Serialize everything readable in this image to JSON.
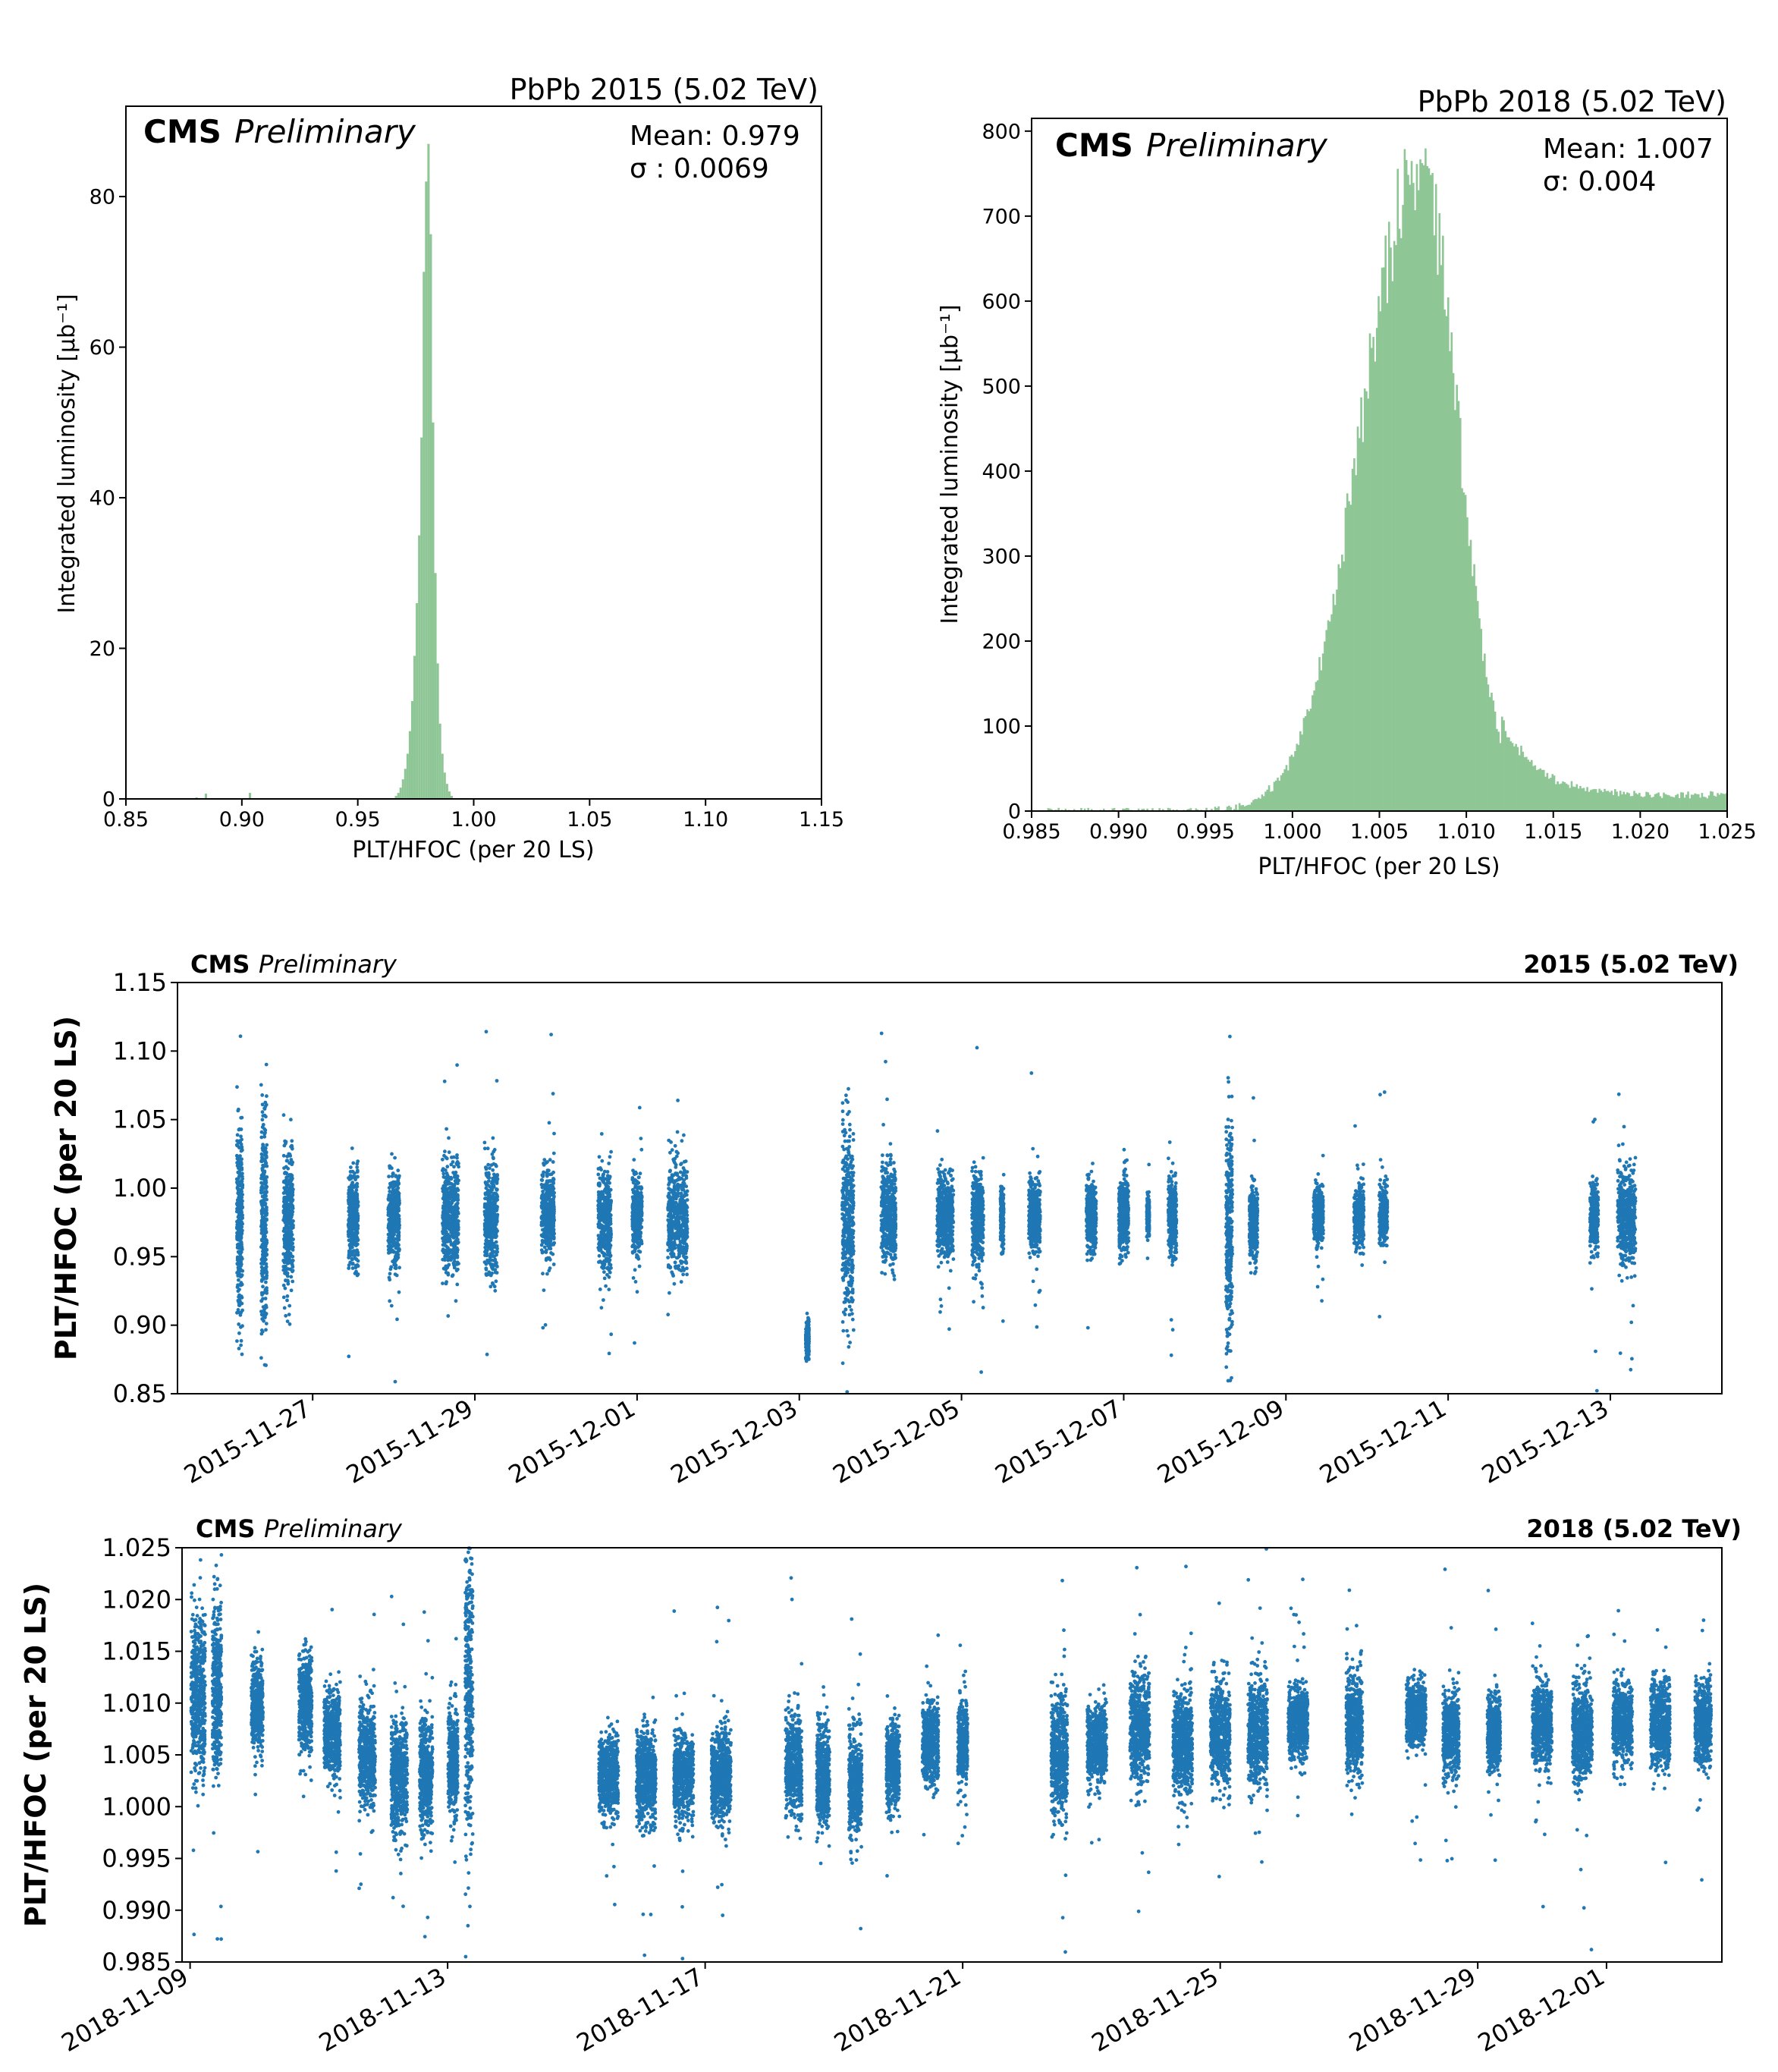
{
  "chart_data": [
    {
      "type": "bar",
      "panel": "histogram-2015",
      "title": "PbPb 2015 (5.02 TeV)",
      "label_bold": "CMS",
      "label_italic": "Preliminary",
      "stats": {
        "mean": "Mean: 0.979",
        "sigma": "σ : 0.0069"
      },
      "xlabel": "PLT/HFOC (per 20 LS)",
      "ylabel": "Integrated luminosity [μb⁻¹]",
      "xlim": [
        0.85,
        1.15
      ],
      "ylim": [
        0,
        92
      ],
      "xticks": [
        "0.85",
        "0.90",
        "0.95",
        "1.00",
        "1.05",
        "1.10",
        "1.15"
      ],
      "yticks": [
        "0",
        "20",
        "40",
        "60",
        "80"
      ],
      "bin_width": 0.001,
      "bins": [
        [
          0.88,
          0.2
        ],
        [
          0.884,
          0.7
        ],
        [
          0.903,
          0.8
        ],
        [
          0.966,
          0.4
        ],
        [
          0.967,
          0.8
        ],
        [
          0.968,
          1.5
        ],
        [
          0.969,
          2.6
        ],
        [
          0.97,
          4.0
        ],
        [
          0.971,
          6.0
        ],
        [
          0.972,
          9.0
        ],
        [
          0.973,
          13.0
        ],
        [
          0.974,
          19.0
        ],
        [
          0.975,
          26.0
        ],
        [
          0.976,
          35.0
        ],
        [
          0.977,
          48.0
        ],
        [
          0.978,
          70.0
        ],
        [
          0.979,
          82.0
        ],
        [
          0.98,
          87.0
        ],
        [
          0.981,
          75.0
        ],
        [
          0.982,
          50.0
        ],
        [
          0.983,
          30.0
        ],
        [
          0.984,
          18.0
        ],
        [
          0.985,
          10.0
        ],
        [
          0.986,
          6.0
        ],
        [
          0.987,
          3.5
        ],
        [
          0.988,
          2.0
        ],
        [
          0.989,
          1.0
        ],
        [
          0.99,
          0.4
        ]
      ],
      "color": "#8fc695"
    },
    {
      "type": "bar",
      "panel": "histogram-2018",
      "title": "PbPb 2018 (5.02 TeV)",
      "label_bold": "CMS",
      "label_italic": "Preliminary",
      "stats": {
        "mean": "Mean: 1.007",
        "sigma": "σ: 0.004"
      },
      "xlabel": "PLT/HFOC (per 20 LS)",
      "ylabel": "Integrated luminosity [μb⁻¹]",
      "xlim": [
        0.985,
        1.025
      ],
      "ylim": [
        0,
        815
      ],
      "xticks": [
        "0.985",
        "0.990",
        "0.995",
        "1.000",
        "1.005",
        "1.010",
        "1.015",
        "1.020",
        "1.025"
      ],
      "yticks": [
        "0",
        "100",
        "200",
        "300",
        "400",
        "500",
        "600",
        "700",
        "800"
      ],
      "peak": {
        "x": 1.0073,
        "y": 760
      },
      "sigma_left": 0.0033,
      "sigma_right": 0.0022,
      "tail_level": 18,
      "color": "#8fc695"
    },
    {
      "type": "scatter",
      "panel": "timeseries-2015",
      "label_bold": "CMS",
      "label_italic": "Preliminary",
      "energy_label": "2015 (5.02 TeV)",
      "ylabel": "PLT/HFOC (per 20 LS)",
      "xlim": [
        "2015-11-25T08:00",
        "2015-12-14T09:00"
      ],
      "ylim": [
        0.85,
        1.15
      ],
      "yticks": [
        "0.85",
        "0.90",
        "0.95",
        "1.00",
        "1.05",
        "1.10",
        "1.15"
      ],
      "xticks": [
        "2015-11-27",
        "2015-11-29",
        "2015-12-01",
        "2015-12-03",
        "2015-12-05",
        "2015-12-07",
        "2015-12-09",
        "2015-12-11",
        "2015-12-13"
      ],
      "color": "#1f77b4",
      "clusters": [
        {
          "t": "2015-11-26T02:24",
          "w": 0.07,
          "c": 0.975,
          "s": 0.035
        },
        {
          "t": "2015-11-26T09:36",
          "w": 0.07,
          "c": 0.975,
          "s": 0.04
        },
        {
          "t": "2015-11-26T16:48",
          "w": 0.12,
          "c": 0.975,
          "s": 0.025
        },
        {
          "t": "2015-11-27T12:00",
          "w": 0.12,
          "c": 0.978,
          "s": 0.017
        },
        {
          "t": "2015-11-28T00:00",
          "w": 0.14,
          "c": 0.978,
          "s": 0.017
        },
        {
          "t": "2015-11-28T16:48",
          "w": 0.2,
          "c": 0.978,
          "s": 0.02
        },
        {
          "t": "2015-11-29T04:48",
          "w": 0.16,
          "c": 0.978,
          "s": 0.02
        },
        {
          "t": "2015-11-29T21:36",
          "w": 0.16,
          "c": 0.98,
          "s": 0.017
        },
        {
          "t": "2015-11-30T14:24",
          "w": 0.16,
          "c": 0.978,
          "s": 0.018
        },
        {
          "t": "2015-12-01T00:00",
          "w": 0.12,
          "c": 0.98,
          "s": 0.013
        },
        {
          "t": "2015-12-01T12:00",
          "w": 0.24,
          "c": 0.978,
          "s": 0.02
        },
        {
          "t": "2015-12-03T02:24",
          "w": 0.04,
          "c": 0.89,
          "s": 0.006
        },
        {
          "t": "2015-12-03T14:24",
          "w": 0.14,
          "c": 0.975,
          "s": 0.035
        },
        {
          "t": "2015-12-04T02:24",
          "w": 0.18,
          "c": 0.98,
          "s": 0.018
        },
        {
          "t": "2015-12-04T19:12",
          "w": 0.2,
          "c": 0.98,
          "s": 0.015
        },
        {
          "t": "2015-12-05T04:48",
          "w": 0.14,
          "c": 0.978,
          "s": 0.017
        },
        {
          "t": "2015-12-05T12:00",
          "w": 0.04,
          "c": 0.98,
          "s": 0.01
        },
        {
          "t": "2015-12-05T21:36",
          "w": 0.14,
          "c": 0.98,
          "s": 0.013
        },
        {
          "t": "2015-12-06T14:24",
          "w": 0.12,
          "c": 0.98,
          "s": 0.013
        },
        {
          "t": "2015-12-07T00:00",
          "w": 0.12,
          "c": 0.98,
          "s": 0.013
        },
        {
          "t": "2015-12-07T07:12",
          "w": 0.03,
          "c": 0.98,
          "s": 0.006
        },
        {
          "t": "2015-12-07T14:24",
          "w": 0.1,
          "c": 0.978,
          "s": 0.013
        },
        {
          "t": "2015-12-08T07:12",
          "w": 0.08,
          "c": 0.97,
          "s": 0.04
        },
        {
          "t": "2015-12-08T14:24",
          "w": 0.1,
          "c": 0.975,
          "s": 0.013
        },
        {
          "t": "2015-12-09T09:36",
          "w": 0.12,
          "c": 0.98,
          "s": 0.01
        },
        {
          "t": "2015-12-09T21:36",
          "w": 0.12,
          "c": 0.98,
          "s": 0.01
        },
        {
          "t": "2015-12-10T04:48",
          "w": 0.1,
          "c": 0.98,
          "s": 0.01
        },
        {
          "t": "2015-12-12T19:12",
          "w": 0.1,
          "c": 0.978,
          "s": 0.012
        },
        {
          "t": "2015-12-13T04:48",
          "w": 0.22,
          "c": 0.978,
          "s": 0.017
        }
      ]
    },
    {
      "type": "scatter",
      "panel": "timeseries-2018",
      "label_bold": "CMS",
      "label_italic": "Preliminary",
      "energy_label": "2018 (5.02 TeV)",
      "ylabel": "PLT/HFOC (per 20 LS)",
      "xlim": [
        "2018-11-08T21:00",
        "2018-12-02T19:00"
      ],
      "ylim": [
        0.985,
        1.025
      ],
      "yticks": [
        "0.985",
        "0.990",
        "0.995",
        "1.000",
        "1.005",
        "1.010",
        "1.015",
        "1.020",
        "1.025"
      ],
      "xticks": [
        "2018-11-09",
        "2018-11-13",
        "2018-11-17",
        "2018-11-21",
        "2018-11-25",
        "2018-11-29",
        "2018-12-01"
      ],
      "color": "#1f77b4",
      "clusters": [
        {
          "t": "2018-11-09T03:00",
          "w": 0.22,
          "c": 1.011,
          "s": 0.004
        },
        {
          "t": "2018-11-09T10:00",
          "w": 0.14,
          "c": 1.011,
          "s": 0.004
        },
        {
          "t": "2018-11-10T01:00",
          "w": 0.18,
          "c": 1.01,
          "s": 0.002
        },
        {
          "t": "2018-11-10T19:00",
          "w": 0.2,
          "c": 1.01,
          "s": 0.0022
        },
        {
          "t": "2018-11-11T05:00",
          "w": 0.25,
          "c": 1.007,
          "s": 0.002
        },
        {
          "t": "2018-11-11T18:00",
          "w": 0.25,
          "c": 1.005,
          "s": 0.0025
        },
        {
          "t": "2018-11-12T06:00",
          "w": 0.25,
          "c": 1.003,
          "s": 0.0028
        },
        {
          "t": "2018-11-12T16:00",
          "w": 0.2,
          "c": 1.003,
          "s": 0.0025
        },
        {
          "t": "2018-11-13T02:00",
          "w": 0.15,
          "c": 1.004,
          "s": 0.0025
        },
        {
          "t": "2018-11-13T08:00",
          "w": 0.12,
          "c": 1.012,
          "s": 0.008
        },
        {
          "t": "2018-11-15T12:00",
          "w": 0.3,
          "c": 1.003,
          "s": 0.002
        },
        {
          "t": "2018-11-16T02:00",
          "w": 0.3,
          "c": 1.003,
          "s": 0.0022
        },
        {
          "t": "2018-11-16T16:00",
          "w": 0.3,
          "c": 1.003,
          "s": 0.002
        },
        {
          "t": "2018-11-17T06:00",
          "w": 0.3,
          "c": 1.003,
          "s": 0.0022
        },
        {
          "t": "2018-11-18T09:00",
          "w": 0.25,
          "c": 1.004,
          "s": 0.0025
        },
        {
          "t": "2018-11-18T20:00",
          "w": 0.2,
          "c": 1.003,
          "s": 0.0025
        },
        {
          "t": "2018-11-19T08:00",
          "w": 0.2,
          "c": 1.002,
          "s": 0.0025
        },
        {
          "t": "2018-11-19T22:00",
          "w": 0.2,
          "c": 1.004,
          "s": 0.002
        },
        {
          "t": "2018-11-20T12:00",
          "w": 0.25,
          "c": 1.006,
          "s": 0.002
        },
        {
          "t": "2018-11-21T00:00",
          "w": 0.15,
          "c": 1.006,
          "s": 0.0018
        },
        {
          "t": "2018-11-22T12:00",
          "w": 0.25,
          "c": 1.005,
          "s": 0.003
        },
        {
          "t": "2018-11-23T02:00",
          "w": 0.3,
          "c": 1.006,
          "s": 0.0018
        },
        {
          "t": "2018-11-23T18:00",
          "w": 0.3,
          "c": 1.0075,
          "s": 0.0025
        },
        {
          "t": "2018-11-24T10:00",
          "w": 0.3,
          "c": 1.006,
          "s": 0.0025
        },
        {
          "t": "2018-11-25T00:00",
          "w": 0.3,
          "c": 1.007,
          "s": 0.0025
        },
        {
          "t": "2018-11-25T14:00",
          "w": 0.3,
          "c": 1.007,
          "s": 0.0025
        },
        {
          "t": "2018-11-26T05:00",
          "w": 0.3,
          "c": 1.008,
          "s": 0.0018
        },
        {
          "t": "2018-11-27T02:00",
          "w": 0.25,
          "c": 1.008,
          "s": 0.0025
        },
        {
          "t": "2018-11-28T01:00",
          "w": 0.3,
          "c": 1.009,
          "s": 0.0015
        },
        {
          "t": "2018-11-28T14:00",
          "w": 0.25,
          "c": 1.007,
          "s": 0.002
        },
        {
          "t": "2018-11-29T06:00",
          "w": 0.2,
          "c": 1.007,
          "s": 0.0018
        },
        {
          "t": "2018-11-30T00:00",
          "w": 0.3,
          "c": 1.008,
          "s": 0.002
        },
        {
          "t": "2018-11-30T15:00",
          "w": 0.3,
          "c": 1.007,
          "s": 0.0022
        },
        {
          "t": "2018-12-01T06:00",
          "w": 0.3,
          "c": 1.008,
          "s": 0.0018
        },
        {
          "t": "2018-12-01T20:00",
          "w": 0.3,
          "c": 1.008,
          "s": 0.002
        },
        {
          "t": "2018-12-02T12:00",
          "w": 0.25,
          "c": 1.008,
          "s": 0.002
        }
      ]
    }
  ]
}
